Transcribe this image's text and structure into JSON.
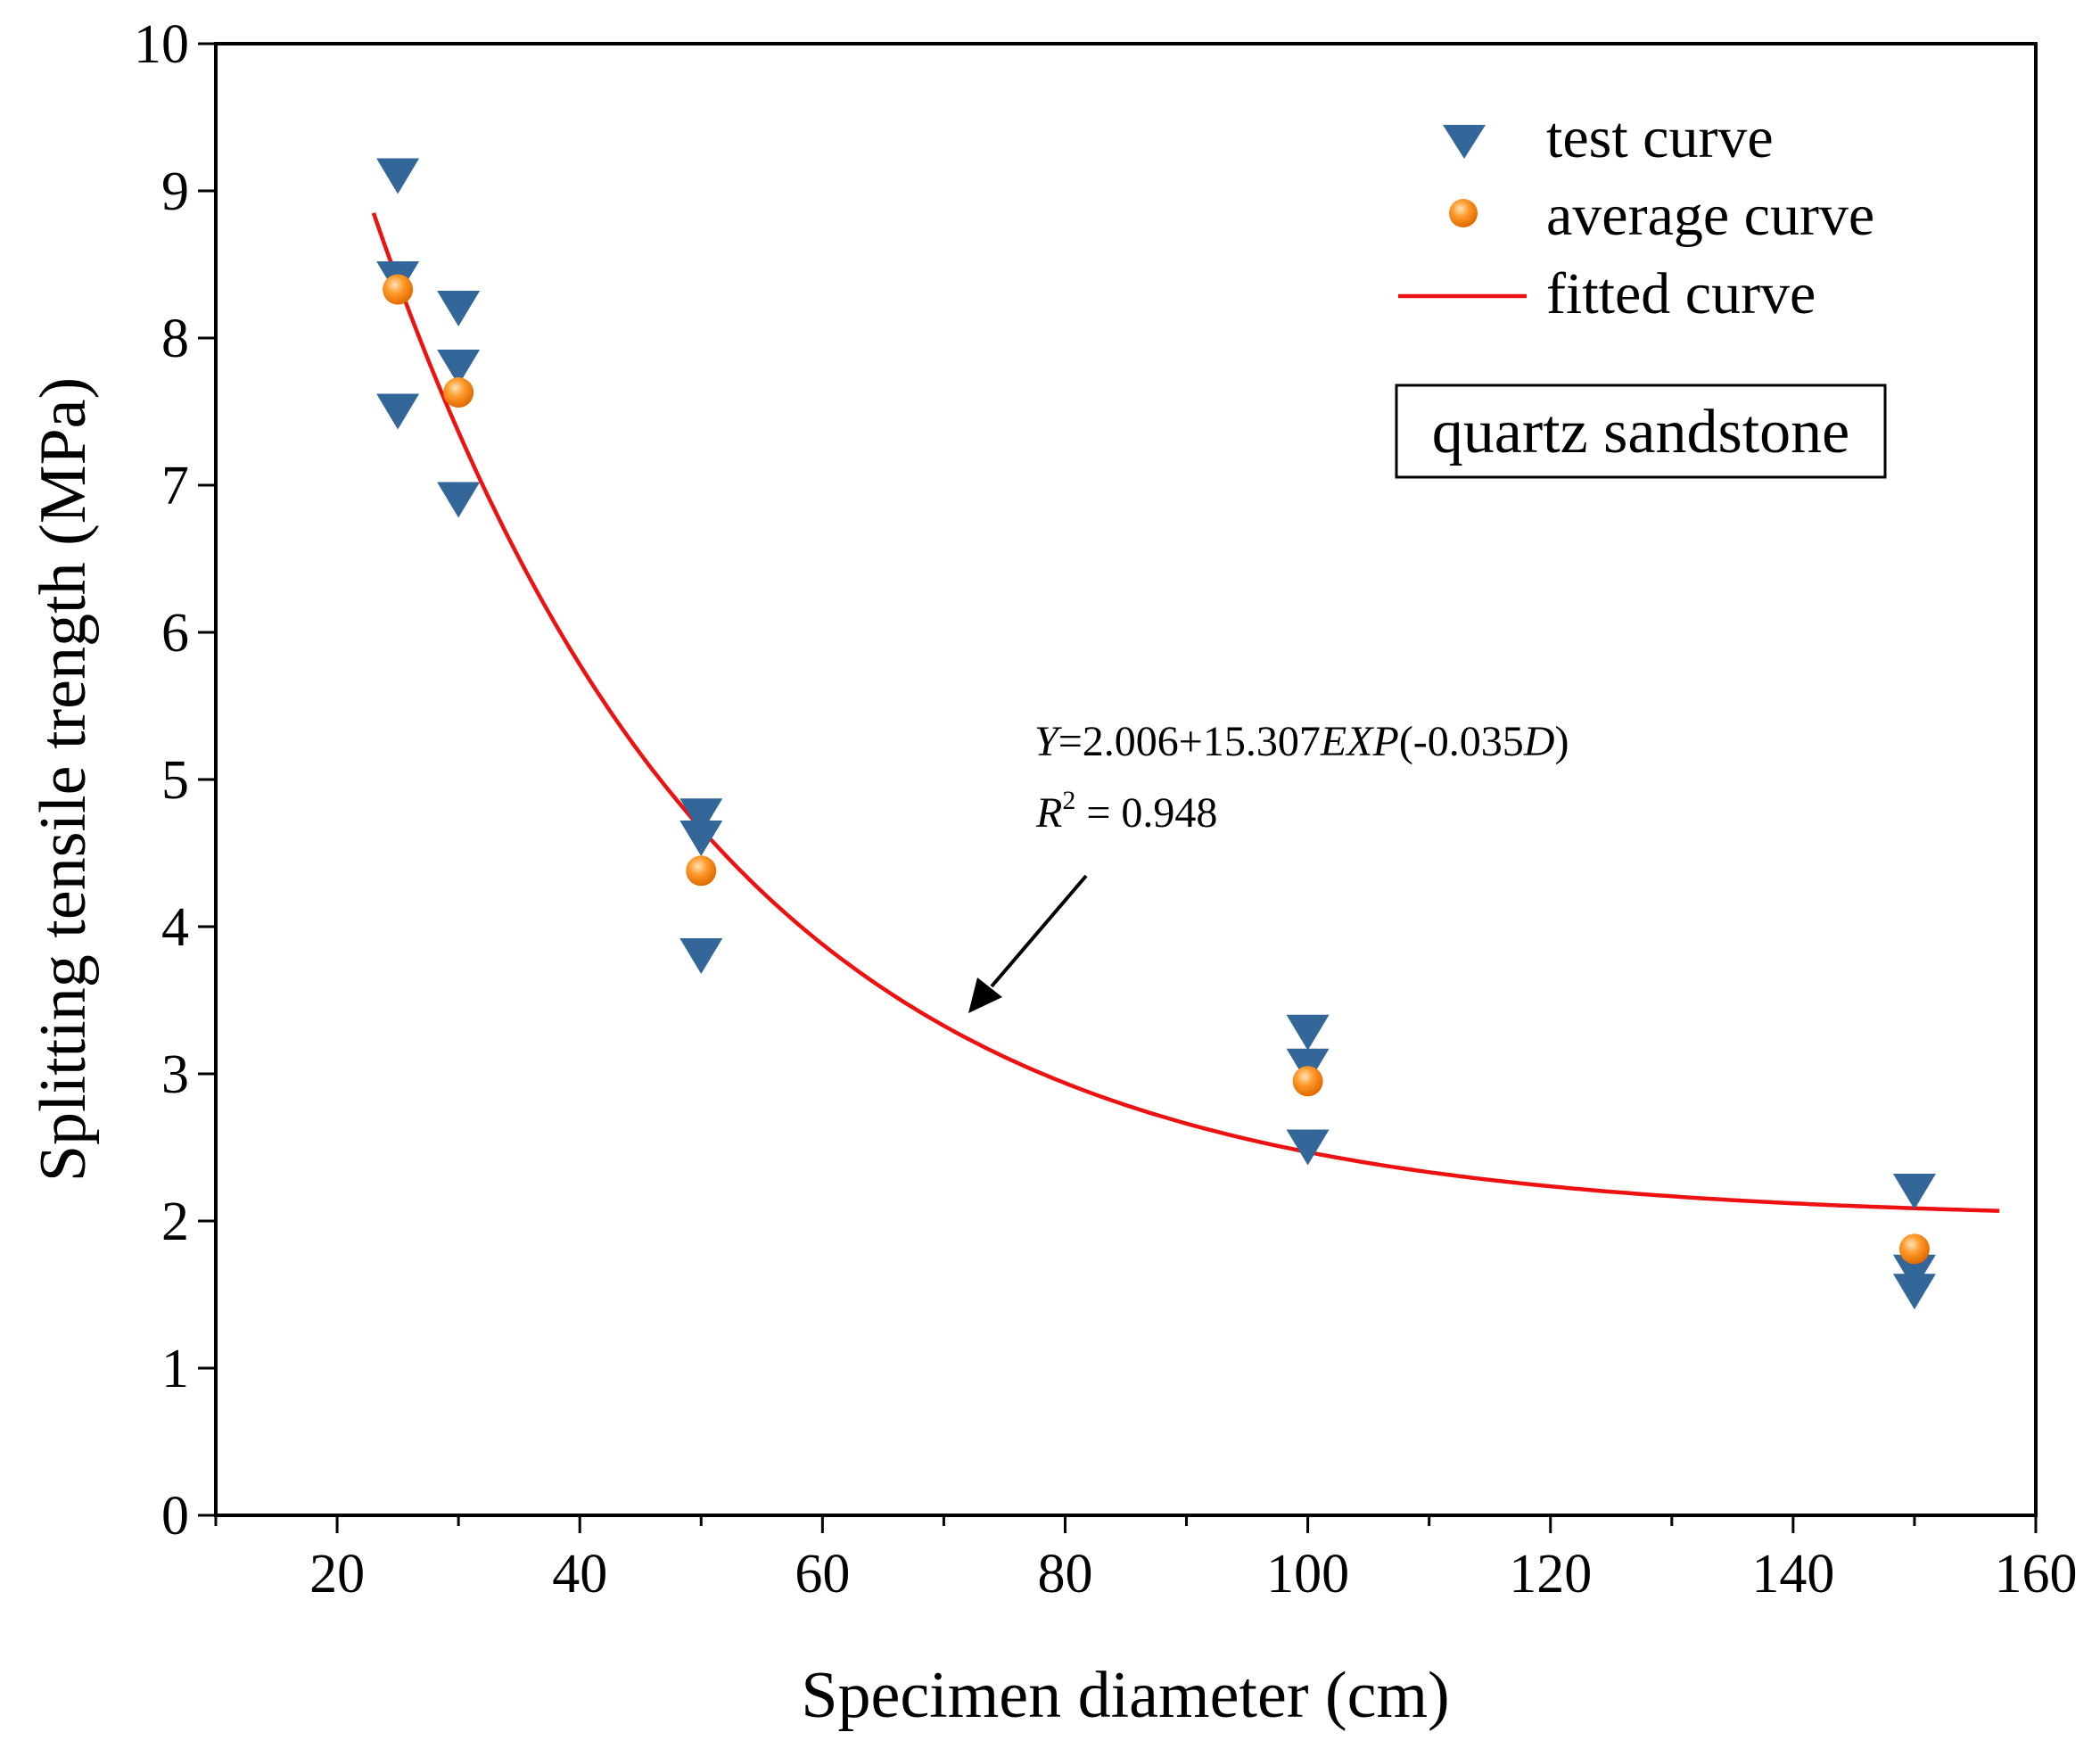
{
  "chart_data": {
    "type": "scatter",
    "xlabel": "Specimen diameter (cm)",
    "ylabel": "Splitting tensile trength (MPa)",
    "xlim": [
      10,
      160
    ],
    "ylim": [
      0,
      10
    ],
    "xticks": [
      20,
      40,
      60,
      80,
      100,
      120,
      140,
      160
    ],
    "yticks": [
      0,
      1,
      2,
      3,
      4,
      5,
      6,
      7,
      8,
      9,
      10
    ],
    "grid": false,
    "legend_position": "top-right",
    "series": [
      {
        "name": "test curve",
        "marker": "triangle-down",
        "color": "#336699",
        "points": [
          [
            25,
            9.1
          ],
          [
            25,
            8.4
          ],
          [
            25,
            7.5
          ],
          [
            30,
            8.2
          ],
          [
            30,
            7.8
          ],
          [
            30,
            6.9
          ],
          [
            50,
            4.75
          ],
          [
            50,
            4.6
          ],
          [
            50,
            3.8
          ],
          [
            100,
            3.28
          ],
          [
            100,
            3.05
          ],
          [
            100,
            2.5
          ],
          [
            150,
            2.2
          ],
          [
            150,
            1.65
          ],
          [
            150,
            1.52
          ]
        ]
      },
      {
        "name": "average curve",
        "marker": "circle",
        "color": "#FF8C1A",
        "points": [
          [
            25,
            8.33
          ],
          [
            30,
            7.63
          ],
          [
            50,
            4.38
          ],
          [
            100,
            2.95
          ],
          [
            150,
            1.81
          ]
        ]
      },
      {
        "name": "fitted curve",
        "type": "line",
        "color": "#EE1111",
        "equation": {
          "a": 2.006,
          "b": 15.307,
          "k": -0.035
        },
        "x_range": [
          23,
          157
        ]
      }
    ],
    "annotations": {
      "equation_prefix": "Y",
      "equation_body": "=2.006+15.307",
      "equation_exp": "EXP",
      "equation_paren": "(-0.035",
      "equation_var": "D",
      "equation_close": ")",
      "r2_symbol": "R",
      "r2_sup": "2",
      "r2_value": " = 0.948",
      "material": "quartz sandstone"
    }
  }
}
